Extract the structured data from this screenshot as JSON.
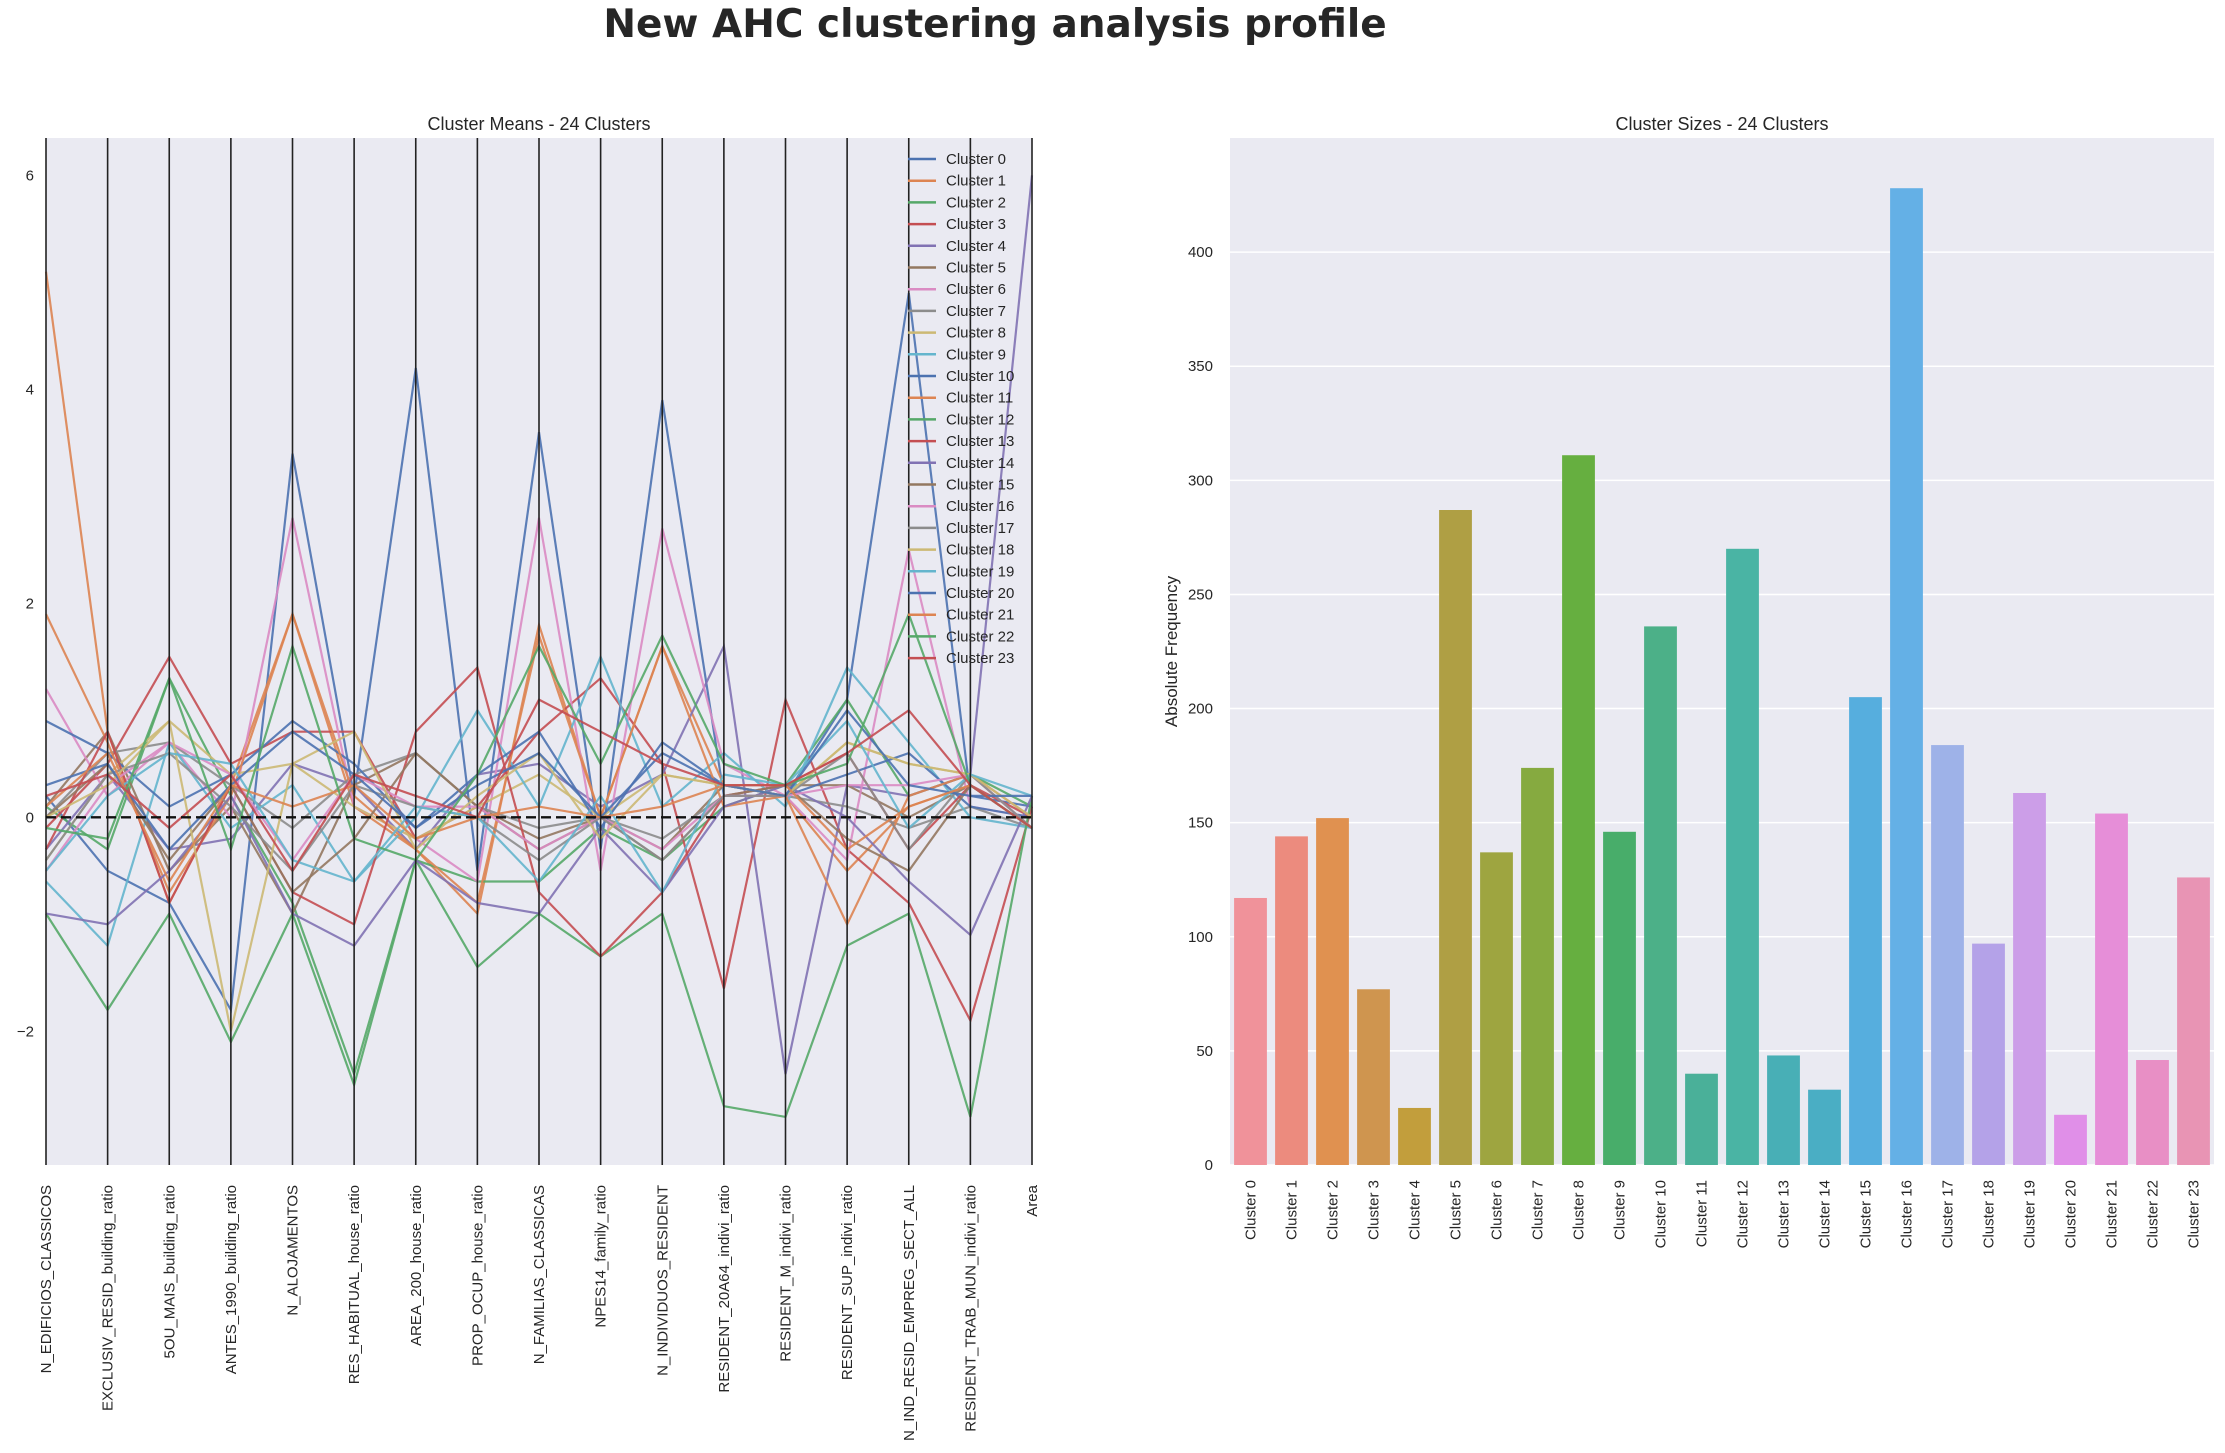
{
  "suptitle": "New AHC clustering analysis profile",
  "colors": {
    "axes_bg": "#eaeaf2",
    "grid": "#ffffff",
    "palette": [
      "#4c72b0",
      "#dd8452",
      "#55a868",
      "#c44e52",
      "#8172b3",
      "#937860",
      "#da8bc3",
      "#8c8c8c",
      "#ccb974",
      "#64b5cd"
    ],
    "bars": [
      "#f0929a",
      "#ec8b7e",
      "#e09150",
      "#cf954f",
      "#c29e3c",
      "#af9f44",
      "#9ea540",
      "#86aa40",
      "#66af40",
      "#48ad6a",
      "#4cb088",
      "#4ab099",
      "#4ab4a4",
      "#48afb6",
      "#4aaec4",
      "#56aede",
      "#64b0e6",
      "#9eb2e8",
      "#b4a2e8",
      "#cc9ee8",
      "#e08fe8",
      "#e68ed8",
      "#e88fc5",
      "#e894b4"
    ]
  },
  "chart_data": [
    {
      "type": "line",
      "subtype": "parallel-coordinates",
      "title": "Cluster Means - 24 Clusters",
      "xlabel": "",
      "ylabel": "",
      "ylim": [
        -3.25,
        6.35
      ],
      "yticks": [
        -2,
        0,
        2,
        4,
        6
      ],
      "legend": "top-right",
      "axes": [
        "N_EDIFICIOS_CLASSICOS",
        "EXCLUSIV_RESID_building_ratio",
        "5OU_MAIS_building_ratio",
        "ANTES_1990_building_ratio",
        "N_ALOJAMENTOS",
        "RES_HABITUAL_house_ratio",
        "AREA_200_house_ratio",
        "PROP_OCUP_house_ratio",
        "N_FAMILIAS_CLASSICAS",
        "NPES14_family_ratio",
        "N_INDIVIDUOS_RESIDENT",
        "RESIDENT_20A64_indivi_ratio",
        "RESIDENT_M_indivi_ratio",
        "RESIDENT_SUP_indivi_ratio",
        "N_IND_RESID_EMPREG_SECT_ALL",
        "RESIDENT_TRAB_MUN_indivi_ratio",
        "Area"
      ],
      "series": [
        {
          "name": "Cluster 0",
          "values": [
            0.2,
            -0.5,
            -0.8,
            -1.8,
            3.4,
            0.2,
            4.2,
            -0.5,
            3.6,
            -0.3,
            3.9,
            0.2,
            0.2,
            1.1,
            4.9,
            0.2,
            0.1
          ]
        },
        {
          "name": "Cluster 1",
          "values": [
            5.1,
            0.8,
            -0.8,
            0.3,
            1.9,
            0.1,
            -0.3,
            -0.9,
            1.8,
            0.0,
            1.6,
            0.3,
            0.2,
            -0.5,
            0.1,
            0.3,
            -0.1
          ]
        },
        {
          "name": "Cluster 2",
          "values": [
            0.1,
            -0.3,
            1.3,
            0.2,
            -0.8,
            -2.4,
            -0.4,
            -0.6,
            -0.6,
            -0.1,
            -0.4,
            0.1,
            0.3,
            1.1,
            0.2,
            0.4,
            0.1
          ]
        },
        {
          "name": "Cluster 3",
          "values": [
            -0.1,
            0.5,
            1.5,
            0.5,
            0.8,
            0.8,
            -0.2,
            0.1,
            0.8,
            1.3,
            0.5,
            -1.6,
            1.1,
            -0.3,
            -0.8,
            -1.9,
            0.1
          ]
        },
        {
          "name": "Cluster 4",
          "values": [
            -0.3,
            0.4,
            -0.3,
            -0.2,
            0.5,
            0.3,
            -0.3,
            0.4,
            0.5,
            0.1,
            0.4,
            1.6,
            -2.4,
            0.3,
            0.2,
            0.4,
            6.0
          ]
        },
        {
          "name": "Cluster 5",
          "values": [
            0.1,
            0.8,
            -0.5,
            0.1,
            -0.9,
            0.3,
            0.6,
            0.1,
            -0.2,
            0.0,
            -0.3,
            0.3,
            0.3,
            0.3,
            0.0,
            0.3,
            -0.1
          ]
        },
        {
          "name": "Cluster 6",
          "values": [
            1.2,
            0.2,
            0.7,
            0.0,
            2.8,
            0.1,
            -0.2,
            -0.6,
            2.8,
            -0.5,
            2.7,
            0.5,
            0.2,
            -0.4,
            2.5,
            0.1,
            0.0
          ]
        },
        {
          "name": "Cluster 7",
          "values": [
            0.0,
            0.6,
            0.7,
            0.3,
            -0.1,
            0.4,
            0.6,
            0.1,
            -0.1,
            0.0,
            -0.2,
            0.2,
            0.2,
            0.1,
            -0.1,
            0.1,
            -0.1
          ]
        },
        {
          "name": "Cluster 8",
          "values": [
            -0.4,
            0.4,
            0.9,
            0.4,
            0.5,
            0.1,
            -0.2,
            0.1,
            0.4,
            0.0,
            0.4,
            0.3,
            0.2,
            0.7,
            0.5,
            0.4,
            -0.1
          ]
        },
        {
          "name": "Cluster 9",
          "values": [
            -0.6,
            -1.2,
            0.7,
            -0.1,
            0.3,
            -0.6,
            0.0,
            1.0,
            0.1,
            1.5,
            0.1,
            0.6,
            0.1,
            1.4,
            0.7,
            0.0,
            -0.1
          ]
        },
        {
          "name": "Cluster 10",
          "values": [
            0.9,
            0.6,
            0.1,
            0.4,
            0.9,
            0.5,
            -0.1,
            0.4,
            0.8,
            -0.1,
            0.7,
            0.3,
            0.2,
            0.4,
            0.6,
            0.1,
            0.0
          ]
        },
        {
          "name": "Cluster 11",
          "values": [
            1.9,
            0.7,
            -0.7,
            0.2,
            1.9,
            0.2,
            -0.3,
            -0.8,
            1.7,
            0.0,
            1.6,
            0.1,
            0.2,
            -1.0,
            0.2,
            0.4,
            0.0
          ]
        },
        {
          "name": "Cluster 12",
          "values": [
            -0.9,
            -1.8,
            -0.9,
            -2.1,
            -0.9,
            -2.5,
            -0.4,
            -1.4,
            -0.9,
            -1.3,
            -0.9,
            -2.7,
            -2.8,
            -1.2,
            -0.9,
            -2.8,
            0.2
          ]
        },
        {
          "name": "Cluster 13",
          "values": [
            -0.3,
            0.8,
            -0.8,
            0.3,
            -0.7,
            -1.0,
            0.8,
            1.4,
            -0.7,
            -1.3,
            -0.7,
            0.2,
            0.3,
            0.6,
            -0.3,
            0.3,
            0.0
          ]
        },
        {
          "name": "Cluster 14",
          "values": [
            -0.9,
            -1.0,
            -0.5,
            0.2,
            -0.9,
            -1.2,
            -0.4,
            -0.8,
            -0.9,
            -0.1,
            -0.7,
            0.1,
            0.3,
            0.0,
            -0.6,
            -1.1,
            0.2
          ]
        },
        {
          "name": "Cluster 15",
          "values": [
            0.0,
            0.5,
            -0.4,
            0.3,
            -0.7,
            -0.2,
            0.6,
            0.1,
            -0.3,
            0.0,
            -0.4,
            0.2,
            0.3,
            -0.2,
            -0.5,
            0.3,
            -0.1
          ]
        },
        {
          "name": "Cluster 16",
          "values": [
            -0.5,
            0.3,
            0.7,
            0.4,
            -0.4,
            0.4,
            0.1,
            0.1,
            -0.3,
            0.0,
            -0.3,
            0.2,
            0.2,
            0.3,
            0.3,
            0.4,
            -0.1
          ]
        },
        {
          "name": "Cluster 17",
          "values": [
            -0.4,
            0.4,
            0.6,
            0.1,
            -0.5,
            0.3,
            0.1,
            0.0,
            -0.4,
            0.0,
            -0.4,
            0.2,
            0.2,
            0.6,
            -0.3,
            0.4,
            -0.1
          ]
        },
        {
          "name": "Cluster 18",
          "values": [
            0.0,
            0.3,
            0.9,
            -2.0,
            0.5,
            0.8,
            -0.3,
            0.2,
            0.6,
            -0.2,
            0.4,
            0.3,
            0.2,
            0.7,
            0.5,
            0.4,
            0.0
          ]
        },
        {
          "name": "Cluster 19",
          "values": [
            -0.5,
            0.2,
            0.6,
            0.5,
            -0.4,
            -0.6,
            0.1,
            0.0,
            -0.6,
            0.2,
            -0.7,
            0.4,
            0.3,
            0.9,
            -0.1,
            0.4,
            0.2
          ]
        },
        {
          "name": "Cluster 20",
          "values": [
            0.3,
            0.5,
            -0.3,
            0.3,
            0.8,
            0.4,
            -0.1,
            0.3,
            0.6,
            0.0,
            0.6,
            0.3,
            0.2,
            1.0,
            0.3,
            0.2,
            0.2
          ]
        },
        {
          "name": "Cluster 21",
          "values": [
            0.1,
            0.6,
            -0.6,
            0.3,
            0.1,
            0.3,
            -0.2,
            0.0,
            0.1,
            0.0,
            0.1,
            0.3,
            0.3,
            -0.3,
            0.1,
            0.3,
            -0.1
          ]
        },
        {
          "name": "Cluster 22",
          "values": [
            -0.1,
            -0.2,
            1.3,
            -0.3,
            1.6,
            -0.2,
            -0.4,
            0.4,
            1.6,
            0.5,
            1.7,
            0.5,
            0.3,
            0.5,
            1.9,
            0.3,
            -0.1
          ]
        },
        {
          "name": "Cluster 23",
          "values": [
            0.2,
            0.4,
            -0.1,
            0.4,
            -0.5,
            0.4,
            0.2,
            0.0,
            1.1,
            0.8,
            0.5,
            0.3,
            0.3,
            0.6,
            1.0,
            0.3,
            -0.1
          ]
        }
      ]
    },
    {
      "type": "bar",
      "title": "Cluster Sizes - 24 Clusters",
      "xlabel": "",
      "ylabel": "Absolute Frequency",
      "ylim": [
        0,
        450
      ],
      "yticks": [
        0,
        50,
        100,
        150,
        200,
        250,
        300,
        350,
        400
      ],
      "categories": [
        "Cluster 0",
        "Cluster 1",
        "Cluster 2",
        "Cluster 3",
        "Cluster 4",
        "Cluster 5",
        "Cluster 6",
        "Cluster 7",
        "Cluster 8",
        "Cluster 9",
        "Cluster 10",
        "Cluster 11",
        "Cluster 12",
        "Cluster 13",
        "Cluster 14",
        "Cluster 15",
        "Cluster 16",
        "Cluster 17",
        "Cluster 18",
        "Cluster 19",
        "Cluster 20",
        "Cluster 21",
        "Cluster 22",
        "Cluster 23"
      ],
      "values": [
        117,
        144,
        152,
        77,
        25,
        287,
        137,
        174,
        311,
        146,
        236,
        40,
        270,
        48,
        33,
        205,
        428,
        184,
        97,
        163,
        22,
        154,
        46,
        126
      ]
    }
  ]
}
